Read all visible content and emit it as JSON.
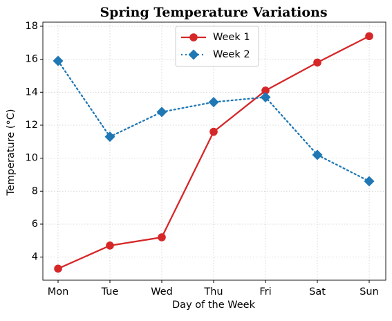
{
  "chart_data": {
    "type": "line",
    "title": "Spring Temperature Variations",
    "xlabel": "Day of the Week",
    "ylabel": "Temperature (°C)",
    "categories": [
      "Mon",
      "Tue",
      "Wed",
      "Thu",
      "Fri",
      "Sat",
      "Sun"
    ],
    "series": [
      {
        "name": "Week 1",
        "color": "#d62728",
        "dash": "solid",
        "marker": "circle",
        "values": [
          3.3,
          4.7,
          5.2,
          11.6,
          14.1,
          15.8,
          17.4
        ]
      },
      {
        "name": "Week 2",
        "color": "#1f77b4",
        "dash": "dotted",
        "marker": "diamond",
        "values": [
          15.9,
          11.3,
          12.8,
          13.4,
          13.7,
          10.2,
          8.6
        ]
      }
    ],
    "ylim": [
      2.6,
      18.25
    ],
    "yticks": [
      4,
      6,
      8,
      10,
      12,
      14,
      16,
      18
    ],
    "grid": true,
    "legend": "upper center"
  }
}
